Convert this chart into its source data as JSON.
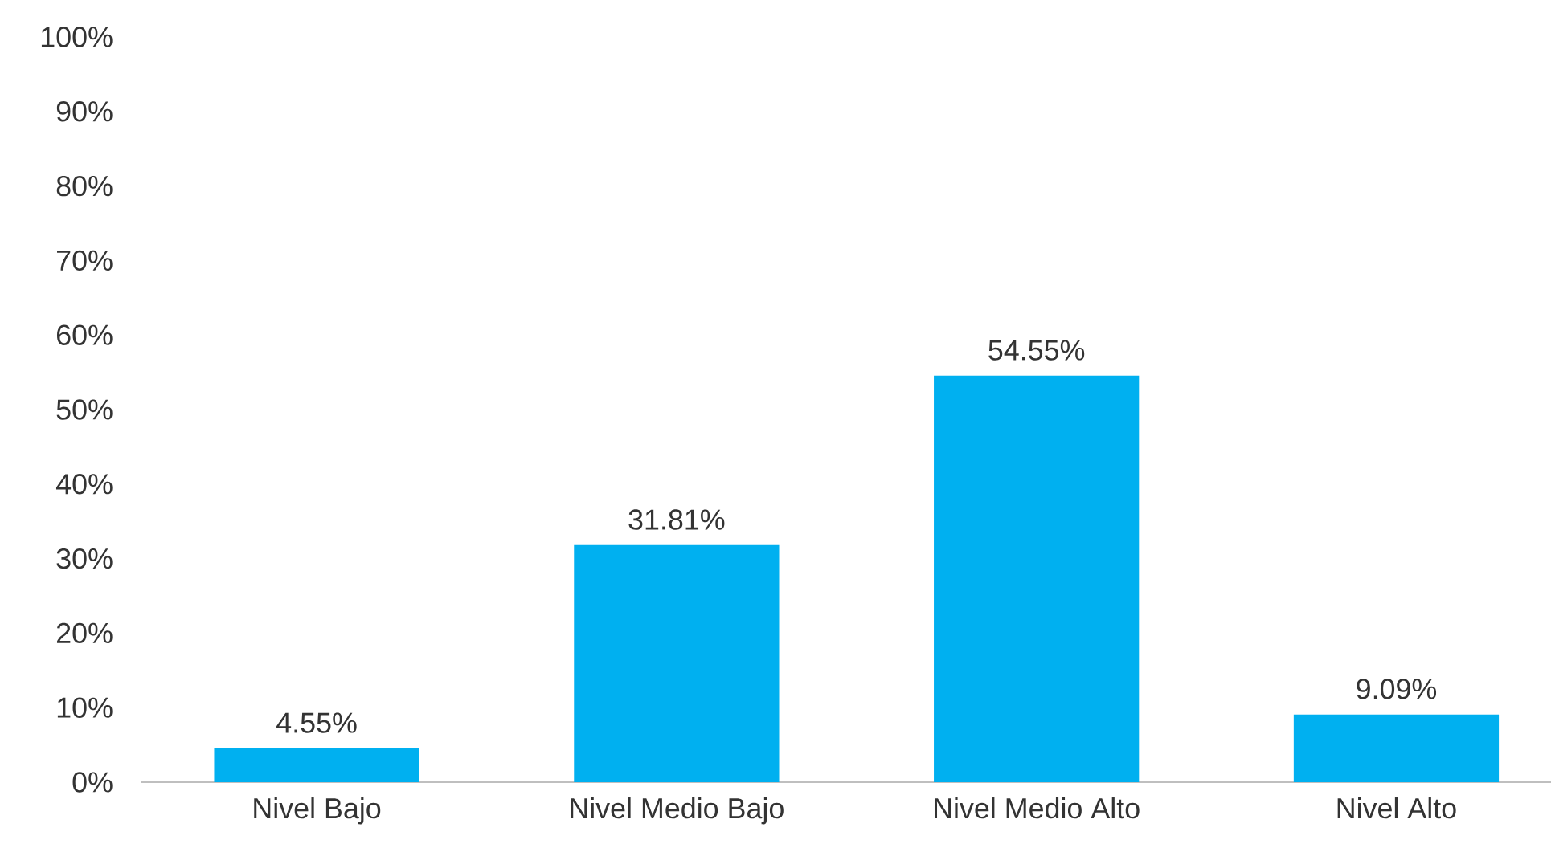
{
  "chart_data": {
    "type": "bar",
    "categories": [
      "Nivel Bajo",
      "Nivel Medio Bajo",
      "Nivel Medio Alto",
      "Nivel Alto"
    ],
    "values": [
      4.55,
      31.81,
      54.55,
      9.09
    ],
    "value_labels": [
      "4.55%",
      "31.81%",
      "54.55%",
      "9.09%"
    ],
    "color": "#00b0f0",
    "ylim": [
      0,
      100
    ],
    "yticks": [
      {
        "value": 0,
        "label": "0%"
      },
      {
        "value": 10,
        "label": "10%"
      },
      {
        "value": 20,
        "label": "20%"
      },
      {
        "value": 30,
        "label": "30%"
      },
      {
        "value": 40,
        "label": "40%"
      },
      {
        "value": 50,
        "label": "50%"
      },
      {
        "value": 60,
        "label": "60%"
      },
      {
        "value": 70,
        "label": "70%"
      },
      {
        "value": 80,
        "label": "80%"
      },
      {
        "value": 90,
        "label": "90%"
      },
      {
        "value": 100,
        "label": "100%"
      }
    ]
  }
}
